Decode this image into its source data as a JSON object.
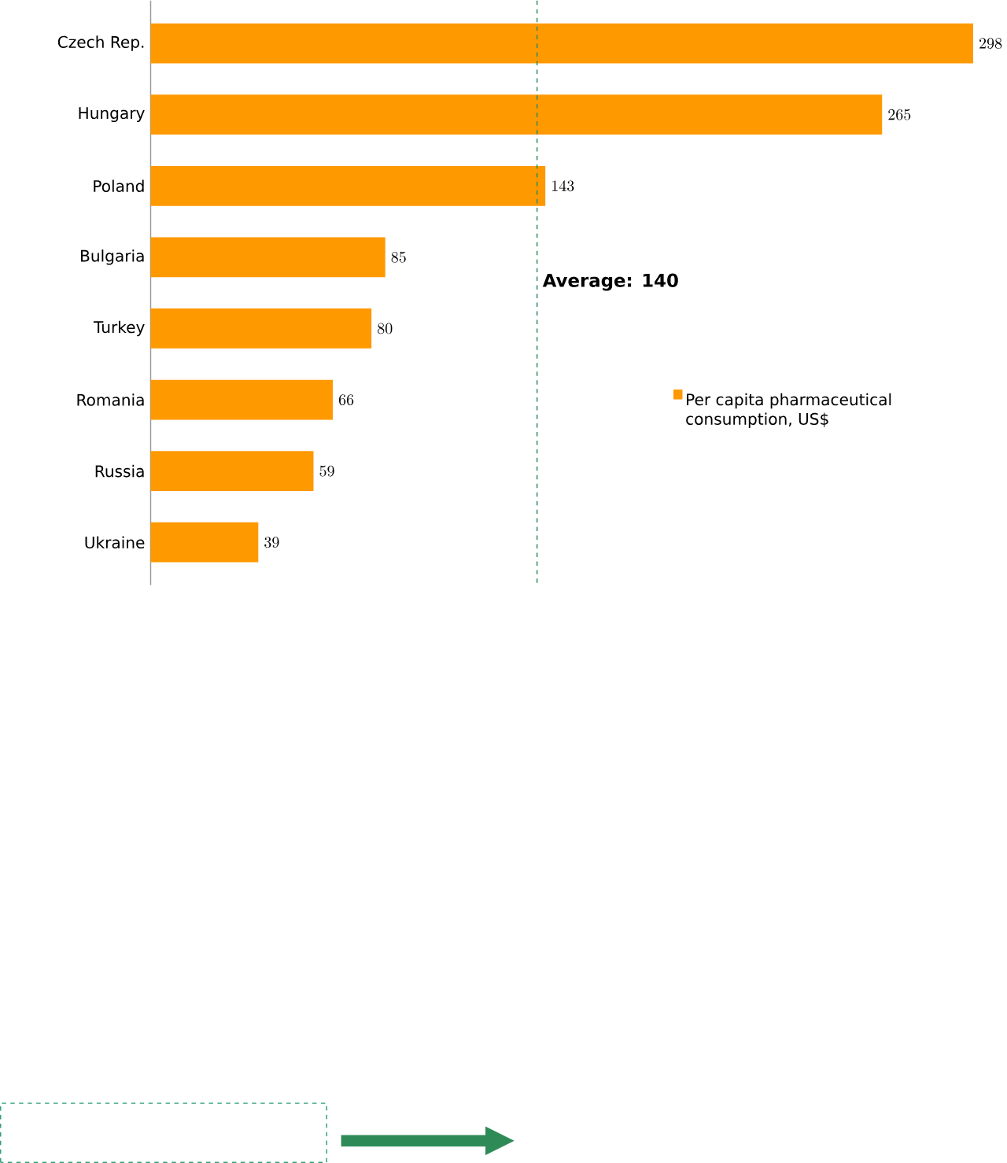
{
  "chart_data": {
    "type": "bar",
    "orientation": "horizontal",
    "categories": [
      "Czech Rep.",
      "Hungary",
      "Poland",
      "Bulgaria",
      "Turkey",
      "Romania",
      "Russia",
      "Ukraine"
    ],
    "series": [
      {
        "name": "Per capita pharmaceutical consumption, US$",
        "color": "#ff9900",
        "values": [
          298,
          265,
          143,
          85,
          80,
          66,
          59,
          39
        ]
      }
    ],
    "tick_labels": "y",
    "data_labels": true,
    "grid": false,
    "legend": "right",
    "ref_lines": [
      {
        "axis": "x",
        "value": 140,
        "label": "Average: 140",
        "color": "#2e8b57",
        "line_style": "dashed"
      }
    ]
  }
}
